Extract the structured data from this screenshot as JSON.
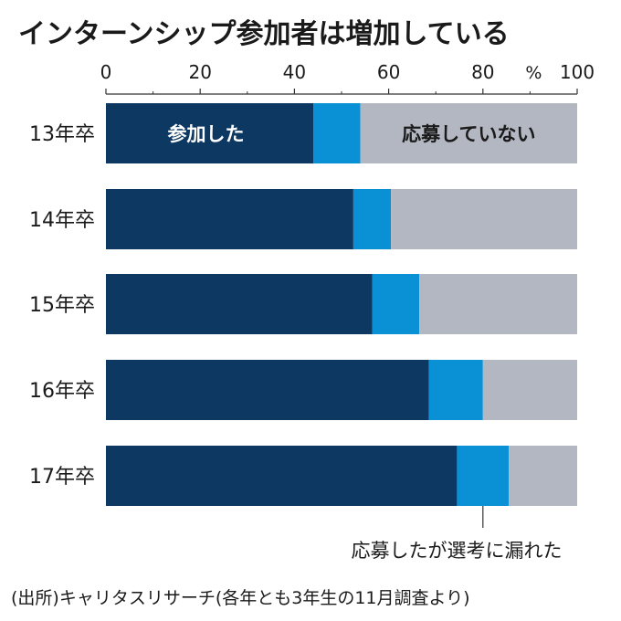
{
  "title": "インターンシップ参加者は増加している",
  "source": "(出所)キャリタスリサーチ(各年とも3年生の11月調査より)",
  "colors": {
    "participated": "#0d3861",
    "applied_rejected": "#0a90d4",
    "not_applied": "#b3b7c2",
    "axis": "#333333"
  },
  "chart_data": {
    "type": "bar",
    "orientation": "horizontal",
    "stacked": true,
    "unit": "%",
    "categories": [
      "13年卒",
      "14年卒",
      "15年卒",
      "16年卒",
      "17年卒"
    ],
    "series": [
      {
        "name": "参加した",
        "values": [
          44,
          52.5,
          56.5,
          68.5,
          74.5
        ]
      },
      {
        "name": "応募したが選考に漏れた",
        "values": [
          10,
          8,
          10,
          11.5,
          11
        ]
      },
      {
        "name": "応募していない",
        "values": [
          46,
          39.5,
          33.5,
          20,
          14.5
        ]
      }
    ],
    "xlim": [
      0,
      100
    ],
    "xticks": [
      "0",
      "20",
      "40",
      "60",
      "80",
      "100"
    ],
    "grid": false
  }
}
